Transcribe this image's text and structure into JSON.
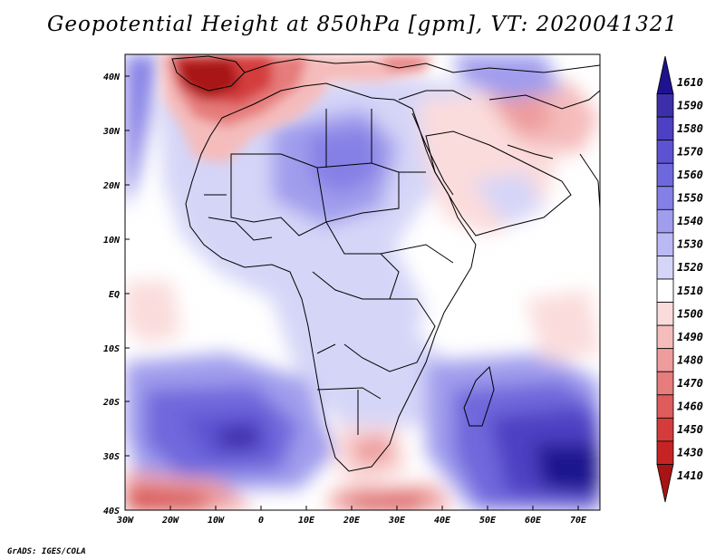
{
  "title": "Geopotential Height at 850hPa [gpm], VT: 2020041321",
  "credit": "GrADS: IGES/COLA",
  "map": {
    "lat_labels": [
      "40N",
      "30N",
      "20N",
      "10N",
      "EQ",
      "10S",
      "20S",
      "30S",
      "40S"
    ],
    "lon_labels": [
      "30W",
      "20W",
      "10W",
      "0",
      "10E",
      "20E",
      "30E",
      "40E",
      "50E",
      "60E",
      "70E"
    ]
  },
  "colorbar": {
    "levels": [
      "1610",
      "1590",
      "1580",
      "1570",
      "1560",
      "1550",
      "1540",
      "1530",
      "1520",
      "1510",
      "1500",
      "1490",
      "1480",
      "1470",
      "1460",
      "1450",
      "1430",
      "1410"
    ],
    "colors": [
      "#1e128e",
      "#3d2fa9",
      "#4d40c2",
      "#5d53d2",
      "#6f67dc",
      "#8580e5",
      "#a09ded",
      "#bab9f3",
      "#d5d5f8",
      "#ffffff",
      "#fbdcdc",
      "#f5bcbc",
      "#ee9c9c",
      "#e67c7c",
      "#de5c5c",
      "#d43c3c",
      "#c62424",
      "#a81414"
    ]
  }
}
